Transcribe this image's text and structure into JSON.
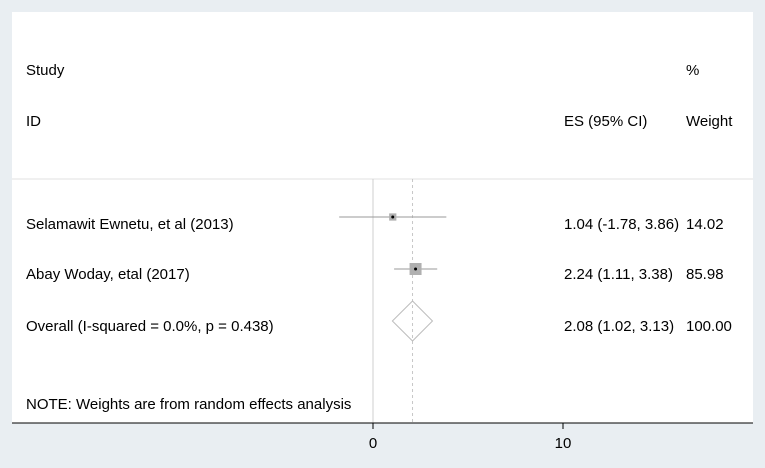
{
  "chart_data": {
    "type": "forest",
    "headers": {
      "study_line1": "Study",
      "study_line2": "ID",
      "es": "ES (95% CI)",
      "weight_line1": "%",
      "weight_line2": "Weight"
    },
    "studies": [
      {
        "label": "Selamawit Ewnetu, et al (2013)",
        "es": 1.04,
        "lower": -1.78,
        "upper": 3.86,
        "es_text": "1.04 (-1.78, 3.86)",
        "weight": 14.02,
        "weight_text": "14.02"
      },
      {
        "label": "Abay Woday, etal (2017)",
        "es": 2.24,
        "lower": 1.11,
        "upper": 3.38,
        "es_text": "2.24 (1.11, 3.38)",
        "weight": 85.98,
        "weight_text": "85.98"
      }
    ],
    "overall": {
      "label": "Overall  (I-squared = 0.0%, p = 0.438)",
      "es": 2.08,
      "lower": 1.02,
      "upper": 3.13,
      "es_text": "2.08 (1.02, 3.13)",
      "weight_text": "100.00"
    },
    "note": "NOTE: Weights are from random effects analysis",
    "x_ticks": [
      0,
      10
    ],
    "x_tick_labels": [
      "0",
      "10"
    ],
    "xlim": [
      -5,
      20
    ],
    "null_line": 0,
    "colors": {
      "background": "#e9eef2",
      "plot": "#ffffff",
      "box": "#b0b0b0",
      "ci": "#9a9a9a",
      "grid": "#e0e0e0"
    }
  }
}
